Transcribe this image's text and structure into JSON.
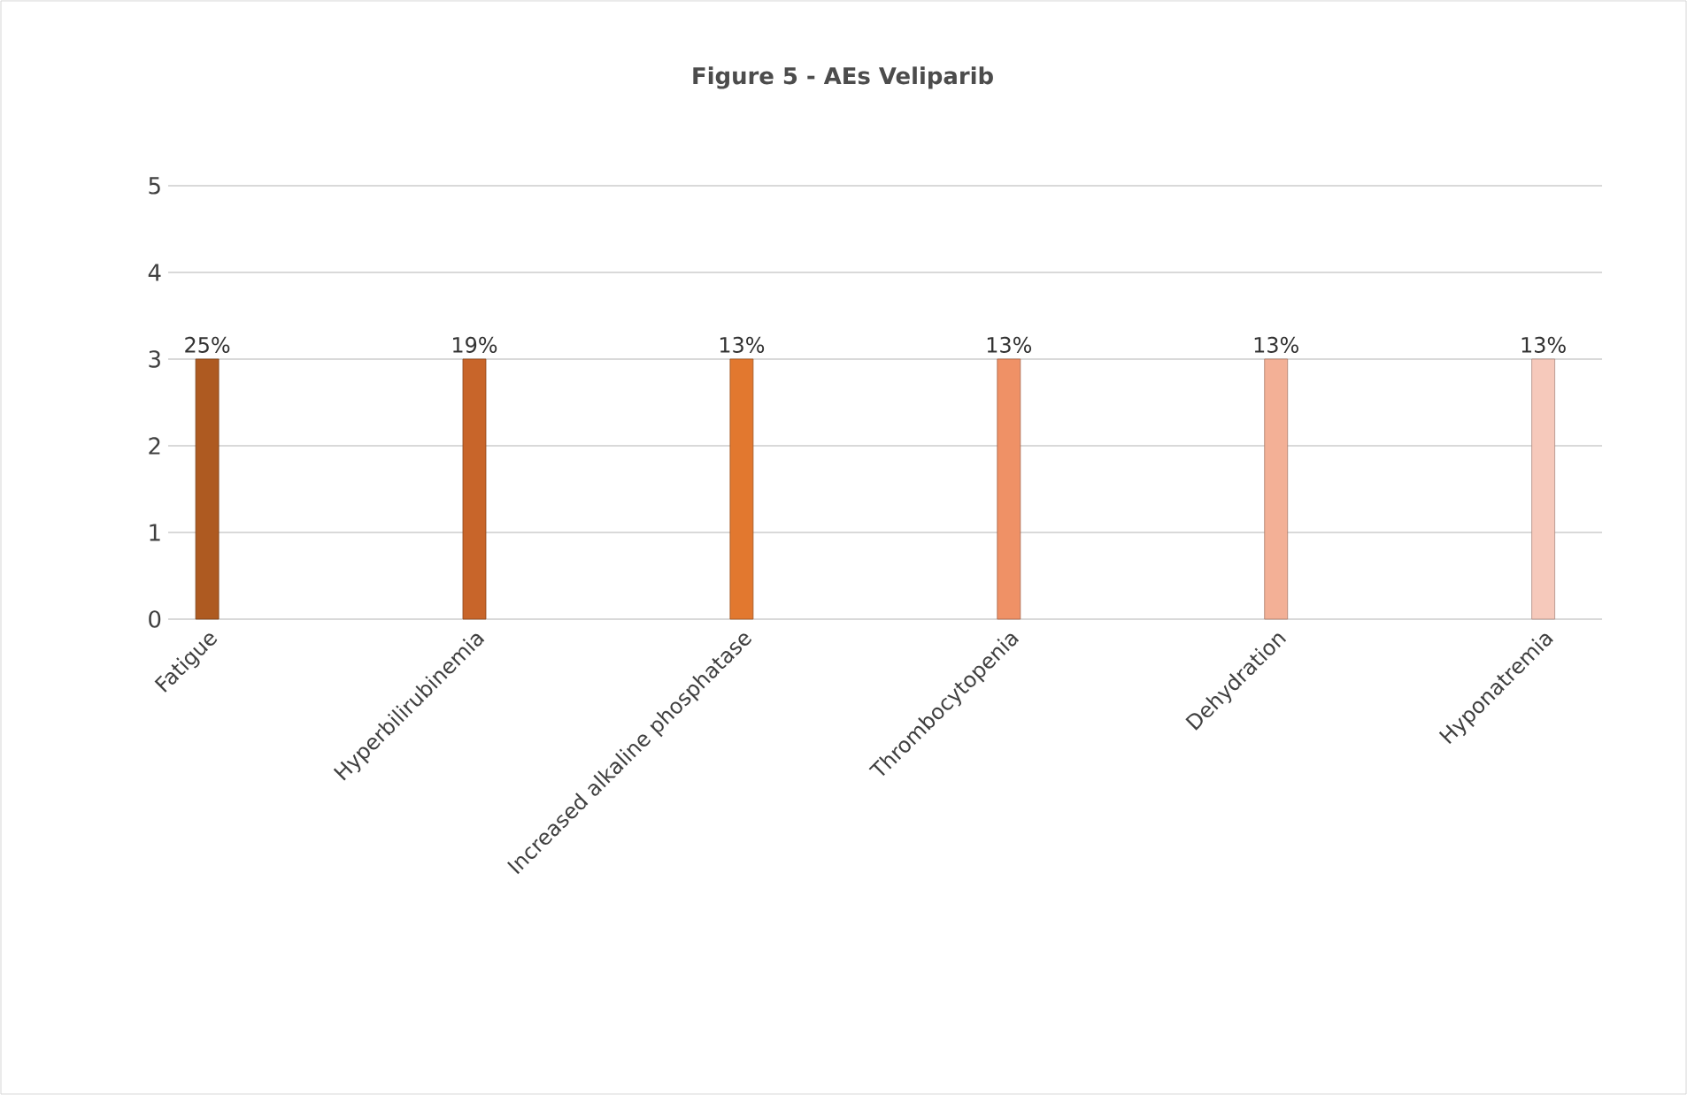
{
  "chart_data": {
    "type": "bar",
    "title": "Figure 5 - AEs Veliparib",
    "categories": [
      "Fatigue",
      "Hyperbilirubinemia",
      "Increased alkaline phosphatase",
      "Thrombocytopenia",
      "Dehydration",
      "Hyponatremia"
    ],
    "values": [
      3,
      3,
      3,
      3,
      3,
      3
    ],
    "annotations": [
      {
        "text": "25%",
        "x": "Fatigue",
        "y": 3
      },
      {
        "text": "19%",
        "x": "Hyperbilirubinemia",
        "y": 3
      },
      {
        "text": "13%",
        "x": "Increased alkaline phosphatase",
        "y": 3
      },
      {
        "text": "13%",
        "x": "Thrombocytopenia",
        "y": 3
      },
      {
        "text": "13%",
        "x": "Dehydration",
        "y": 3
      },
      {
        "text": "13%",
        "x": "Hyponatremia",
        "y": 3
      }
    ],
    "colors": [
      "#ae5a21",
      "#c8652a",
      "#e2782f",
      "#ef9166",
      "#f3b096",
      "#f6c9bb"
    ],
    "ylim": [
      0,
      5
    ],
    "yticks": [
      0,
      1,
      2,
      3,
      4,
      5
    ],
    "grid": "y"
  }
}
